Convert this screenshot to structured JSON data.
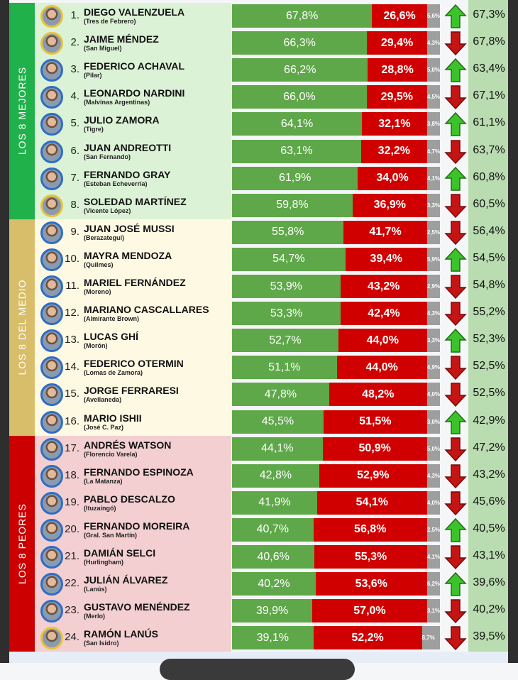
{
  "groups": [
    {
      "label": "LOS 8 MEJORES",
      "band_color": "#21b14b",
      "bg_color": "#dcf2d6"
    },
    {
      "label": "LOS 8 DEL MEDIO",
      "band_color": "#d8bd6a",
      "bg_color": "#fdf9e3"
    },
    {
      "label": "LOS 8 PEORES",
      "band_color": "#cc0000",
      "bg_color": "#f3cfd1"
    }
  ],
  "colors": {
    "positive": "#5fa84a",
    "negative": "#d10000",
    "other": "#9e9e9e",
    "up": "#3cc22a",
    "down": "#c41414"
  },
  "rows": [
    {
      "rank": "1.",
      "name": "DIEGO VALENZUELA",
      "city": "(Tres de Febrero)",
      "pos": 67.8,
      "neg": 26.6,
      "other": 5.6,
      "pos_label": "67,8%",
      "neg_label": "26,6%",
      "other_label": "5,6%",
      "trend": "up",
      "prev": "67,3%",
      "border": "gold"
    },
    {
      "rank": "2.",
      "name": "JAIME MÉNDEZ",
      "city": "(San Miguel)",
      "pos": 66.3,
      "neg": 29.4,
      "other": 4.3,
      "pos_label": "66,3%",
      "neg_label": "29,4%",
      "other_label": "4,3%",
      "trend": "down",
      "prev": "67,8%",
      "border": "gold"
    },
    {
      "rank": "3.",
      "name": "FEDERICO ACHAVAL",
      "city": "(Pilar)",
      "pos": 66.2,
      "neg": 28.8,
      "other": 5.0,
      "pos_label": "66,2%",
      "neg_label": "28,8%",
      "other_label": "5,0%",
      "trend": "up",
      "prev": "63,4%",
      "border": "blue"
    },
    {
      "rank": "4.",
      "name": "LEONARDO NARDINI",
      "city": "(Malvinas Argentinas)",
      "pos": 66.0,
      "neg": 29.5,
      "other": 4.5,
      "pos_label": "66,0%",
      "neg_label": "29,5%",
      "other_label": "4,5%",
      "trend": "down",
      "prev": "67,1%",
      "border": "blue"
    },
    {
      "rank": "5.",
      "name": "JULIO ZAMORA",
      "city": "(Tigre)",
      "pos": 64.1,
      "neg": 32.1,
      "other": 3.8,
      "pos_label": "64,1%",
      "neg_label": "32,1%",
      "other_label": "3,8%",
      "trend": "up",
      "prev": "61,1%",
      "border": "blue"
    },
    {
      "rank": "6.",
      "name": "JUAN ANDREOTTI",
      "city": "(San Fernando)",
      "pos": 63.1,
      "neg": 32.2,
      "other": 4.7,
      "pos_label": "63,1%",
      "neg_label": "32,2%",
      "other_label": "4,7%",
      "trend": "down",
      "prev": "63,7%",
      "border": "blue"
    },
    {
      "rank": "7.",
      "name": "FERNANDO GRAY",
      "city": "(Esteban Echeverría)",
      "pos": 61.9,
      "neg": 34.0,
      "other": 4.1,
      "pos_label": "61,9%",
      "neg_label": "34,0%",
      "other_label": "4,1%",
      "trend": "up",
      "prev": "60,8%",
      "border": "blue"
    },
    {
      "rank": "8.",
      "name": "SOLEDAD MARTÍNEZ",
      "city": "(Vicente López)",
      "pos": 59.8,
      "neg": 36.9,
      "other": 3.3,
      "pos_label": "59,8%",
      "neg_label": "36,9%",
      "other_label": "3,3%",
      "trend": "down",
      "prev": "60,5%",
      "border": "gold"
    },
    {
      "rank": "9.",
      "name": "JUAN JOSÉ MUSSI",
      "city": "(Berazategui)",
      "pos": 55.8,
      "neg": 41.7,
      "other": 2.5,
      "pos_label": "55,8%",
      "neg_label": "41,7%",
      "other_label": "2,5%",
      "trend": "down",
      "prev": "56,4%",
      "border": "blue"
    },
    {
      "rank": "10.",
      "name": "MAYRA MENDOZA",
      "city": "(Quilmes)",
      "pos": 54.7,
      "neg": 39.4,
      "other": 5.9,
      "pos_label": "54,7%",
      "neg_label": "39,4%",
      "other_label": "5,9%",
      "trend": "up",
      "prev": "54,5%",
      "border": "blue"
    },
    {
      "rank": "11.",
      "name": "MARIEL FERNÁNDEZ",
      "city": "(Moreno)",
      "pos": 53.9,
      "neg": 43.2,
      "other": 2.9,
      "pos_label": "53,9%",
      "neg_label": "43,2%",
      "other_label": "2,9%",
      "trend": "down",
      "prev": "54,8%",
      "border": "blue"
    },
    {
      "rank": "12.",
      "name": "MARIANO CASCALLARES",
      "city": "(Almirante Brown)",
      "pos": 53.3,
      "neg": 42.4,
      "other": 4.3,
      "pos_label": "53,3%",
      "neg_label": "42,4%",
      "other_label": "4,3%",
      "trend": "down",
      "prev": "55,2%",
      "border": "blue"
    },
    {
      "rank": "13.",
      "name": "LUCAS GHÍ",
      "city": "(Morón)",
      "pos": 52.7,
      "neg": 44.0,
      "other": 3.3,
      "pos_label": "52,7%",
      "neg_label": "44,0%",
      "other_label": "3,3%",
      "trend": "up",
      "prev": "52,3%",
      "border": "blue"
    },
    {
      "rank": "14.",
      "name": "FEDERICO OTERMIN",
      "city": "(Lomas de Zamora)",
      "pos": 51.1,
      "neg": 44.0,
      "other": 4.9,
      "pos_label": "51,1%",
      "neg_label": "44,0%",
      "other_label": "4,9%",
      "trend": "down",
      "prev": "52,5%",
      "border": "blue"
    },
    {
      "rank": "15.",
      "name": "JORGE FERRARESI",
      "city": "(Avellaneda)",
      "pos": 47.8,
      "neg": 48.2,
      "other": 4.0,
      "pos_label": "47,8%",
      "neg_label": "48,2%",
      "other_label": "4,0%",
      "trend": "down",
      "prev": "52,5%",
      "border": "blue"
    },
    {
      "rank": "16.",
      "name": "MARIO ISHII",
      "city": "(José C. Paz)",
      "pos": 45.5,
      "neg": 51.5,
      "other": 3.0,
      "pos_label": "45,5%",
      "neg_label": "51,5%",
      "other_label": "3,0%",
      "trend": "up",
      "prev": "42,9%",
      "border": "blue"
    },
    {
      "rank": "17.",
      "name": "ANDRÉS WATSON",
      "city": "(Florencio Varela)",
      "pos": 44.1,
      "neg": 50.9,
      "other": 5.0,
      "pos_label": "44,1%",
      "neg_label": "50,9%",
      "other_label": "5,0%",
      "trend": "down",
      "prev": "47,2%",
      "border": "blue"
    },
    {
      "rank": "18.",
      "name": "FERNANDO ESPINOZA",
      "city": "(La Matanza)",
      "pos": 42.8,
      "neg": 52.9,
      "other": 4.3,
      "pos_label": "42,8%",
      "neg_label": "52,9%",
      "other_label": "4,3%",
      "trend": "down",
      "prev": "43,2%",
      "border": "blue"
    },
    {
      "rank": "19.",
      "name": "PABLO DESCALZO",
      "city": "(Ituzaingó)",
      "pos": 41.9,
      "neg": 54.1,
      "other": 4.0,
      "pos_label": "41,9%",
      "neg_label": "54,1%",
      "other_label": "4,0%",
      "trend": "down",
      "prev": "45,6%",
      "border": "blue"
    },
    {
      "rank": "20.",
      "name": "FERNANDO MOREIRA",
      "city": "(Gral. San Martín)",
      "pos": 40.7,
      "neg": 56.8,
      "other": 2.5,
      "pos_label": "40,7%",
      "neg_label": "56,8%",
      "other_label": "2,5%",
      "trend": "up",
      "prev": "40,5%",
      "border": "blue"
    },
    {
      "rank": "21.",
      "name": "DAMIÁN SELCI",
      "city": "(Hurlingham)",
      "pos": 40.6,
      "neg": 55.3,
      "other": 4.1,
      "pos_label": "40,6%",
      "neg_label": "55,3%",
      "other_label": "4,1%",
      "trend": "down",
      "prev": "43,1%",
      "border": "blue"
    },
    {
      "rank": "22.",
      "name": "JULIÁN ÁLVAREZ",
      "city": "(Lanús)",
      "pos": 40.2,
      "neg": 53.6,
      "other": 6.2,
      "pos_label": "40,2%",
      "neg_label": "53,6%",
      "other_label": "6,2%",
      "trend": "up",
      "prev": "39,6%",
      "border": "blue"
    },
    {
      "rank": "23.",
      "name": "GUSTAVO MENÉNDEZ",
      "city": "(Merlo)",
      "pos": 39.9,
      "neg": 57.0,
      "other": 3.1,
      "pos_label": "39,9%",
      "neg_label": "57,0%",
      "other_label": "3,1%",
      "trend": "down",
      "prev": "40,2%",
      "border": "blue"
    },
    {
      "rank": "24.",
      "name": "RAMÓN LANÚS",
      "city": "(San Isidro)",
      "pos": 39.1,
      "neg": 52.2,
      "other": 8.7,
      "pos_label": "39,1%",
      "neg_label": "52,2%",
      "other_label": "8,7%",
      "trend": "down",
      "prev": "39,5%",
      "border": "gold"
    }
  ]
}
